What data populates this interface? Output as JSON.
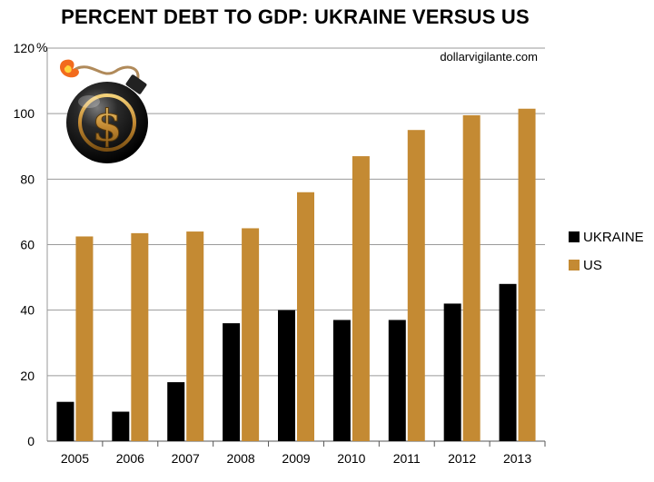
{
  "chart_data": {
    "type": "bar",
    "title": "PERCENT DEBT TO GDP: UKRAINE VERSUS US",
    "source_label": "dollarvigilante.com",
    "y_unit_label": "%",
    "categories": [
      "2005",
      "2006",
      "2007",
      "2008",
      "2009",
      "2010",
      "2011",
      "2012",
      "2013"
    ],
    "series": [
      {
        "name": "UKRAINE",
        "color": "#000000",
        "values": [
          12,
          9,
          18,
          36,
          40,
          37,
          37,
          42,
          48
        ]
      },
      {
        "name": "US",
        "color": "#c48a33",
        "values": [
          62.5,
          63.5,
          64,
          65,
          76,
          87,
          95,
          99.5,
          101.5
        ]
      }
    ],
    "ylim": [
      0,
      120
    ],
    "yticks": [
      0,
      20,
      40,
      60,
      80,
      100,
      120
    ],
    "grid": true,
    "legend_position": "right",
    "logo_icon": "dollar-bomb-icon"
  }
}
